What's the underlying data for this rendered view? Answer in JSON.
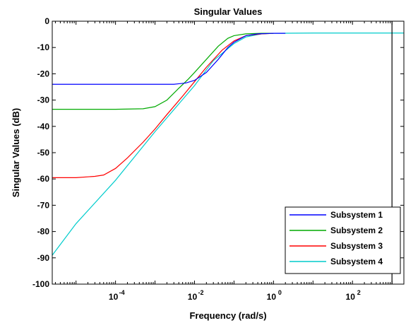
{
  "chart_data": {
    "type": "line",
    "title": "Singular Values",
    "xlabel": "Frequency (rad/s)",
    "ylabel": "Singular Values (dB)",
    "x_scale": "log",
    "xlim": [
      2.5e-06,
      2000
    ],
    "ylim": [
      -100,
      0
    ],
    "x_tick_labels": [
      {
        "base": "10",
        "exp": "-4",
        "value": 0.0001
      },
      {
        "base": "10",
        "exp": "-2",
        "value": 0.01
      },
      {
        "base": "10",
        "exp": "0",
        "value": 1
      },
      {
        "base": "10",
        "exp": "2",
        "value": 100
      }
    ],
    "y_ticks": [
      0,
      -10,
      -20,
      -30,
      -40,
      -50,
      -60,
      -70,
      -80,
      -90,
      -100
    ],
    "grid": false,
    "legend_position": "bottom-right",
    "vertical_line_x": 1000,
    "series": [
      {
        "name": "Subsystem 1",
        "color": "#0000ff",
        "x": [
          2.5e-06,
          0.0001,
          0.001,
          0.003,
          0.006,
          0.01,
          0.02,
          0.04,
          0.07,
          0.1,
          0.2,
          0.4,
          1,
          2
        ],
        "y": [
          -24,
          -24,
          -24,
          -24,
          -23.5,
          -22.5,
          -19.5,
          -14.5,
          -10,
          -8,
          -5.5,
          -4.8,
          -4.6,
          -4.6
        ]
      },
      {
        "name": "Subsystem 2",
        "color": "#00aa00",
        "x": [
          2.5e-06,
          0.0001,
          0.0005,
          0.001,
          0.002,
          0.004,
          0.007,
          0.01,
          0.02,
          0.04,
          0.07,
          0.1,
          0.2,
          0.5,
          1
        ],
        "y": [
          -33.5,
          -33.5,
          -33.3,
          -32.5,
          -30,
          -25.5,
          -22,
          -19.5,
          -14.5,
          -9.5,
          -6.5,
          -5.5,
          -4.8,
          -4.6,
          -4.6
        ]
      },
      {
        "name": "Subsystem 3",
        "color": "#ff0000",
        "x": [
          2.5e-06,
          1e-05,
          3e-05,
          5e-05,
          0.0001,
          0.0002,
          0.0005,
          0.001,
          0.002,
          0.005,
          0.01,
          0.02,
          0.05,
          0.1,
          0.2,
          0.5,
          1
        ],
        "y": [
          -59.5,
          -59.5,
          -59,
          -58.5,
          -56,
          -52,
          -46,
          -41,
          -35.5,
          -28.5,
          -23,
          -17.5,
          -11,
          -7.5,
          -5.5,
          -4.8,
          -4.6
        ]
      },
      {
        "name": "Subsystem 4",
        "color": "#00cccc",
        "x": [
          2.5e-06,
          1e-05,
          0.0001,
          0.001,
          0.01,
          0.03,
          0.1,
          0.2,
          0.5,
          1,
          10,
          100,
          1000,
          2000
        ],
        "y": [
          -89,
          -77,
          -60.5,
          -42,
          -24.5,
          -15,
          -8.5,
          -6,
          -4.8,
          -4.6,
          -4.5,
          -4.5,
          -4.5,
          -4.5
        ]
      }
    ]
  }
}
